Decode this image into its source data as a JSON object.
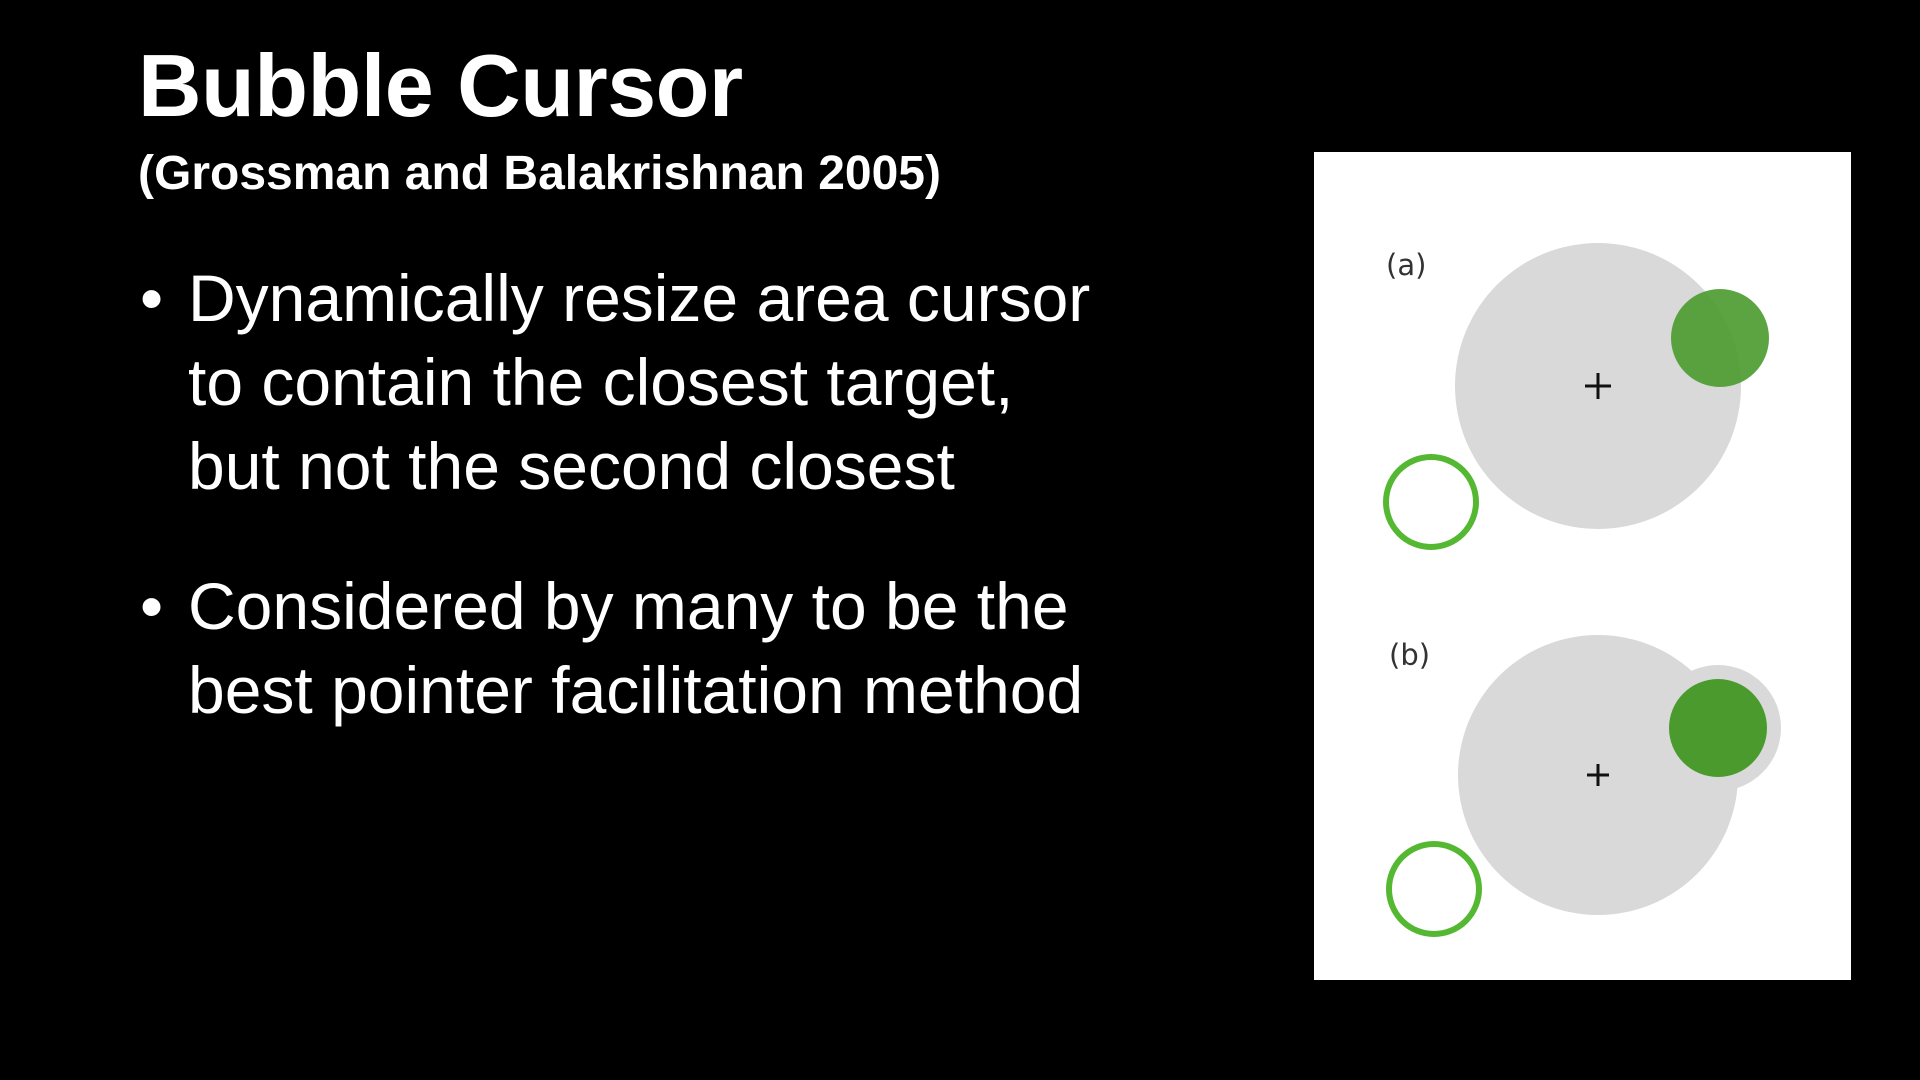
{
  "slide": {
    "title": "Bubble Cursor",
    "subtitle": "(Grossman and Balakrishnan 2005)",
    "bullets": [
      "Dynamically resize area cursor to contain the closest target, but not the second closest",
      "Considered by many to be the best pointer facilitation method"
    ],
    "bullet_glyph": "•"
  },
  "figure": {
    "panels": [
      {
        "label": "(a)"
      },
      {
        "label": "(b)"
      }
    ],
    "colors": {
      "background": "#ffffff",
      "bubble": "#d9d9d9",
      "target_filled": "#4a9a2e",
      "target_outline": "#55b832",
      "crosshair": "#111111"
    }
  }
}
